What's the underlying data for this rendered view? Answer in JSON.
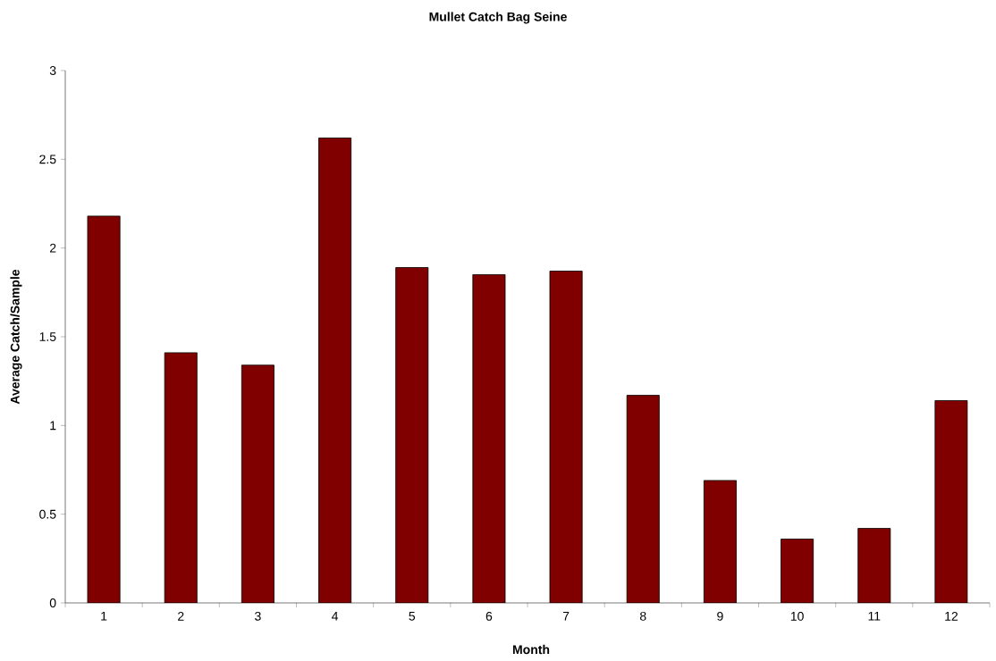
{
  "chart_data": {
    "type": "bar",
    "title": "Mullet Catch Bag Seine",
    "xlabel": "Month",
    "ylabel": "Average Catch/Sample",
    "categories": [
      "1",
      "2",
      "3",
      "4",
      "5",
      "6",
      "7",
      "8",
      "9",
      "10",
      "11",
      "12"
    ],
    "values": [
      2.18,
      1.41,
      1.34,
      2.62,
      1.89,
      1.85,
      1.87,
      1.17,
      0.69,
      0.36,
      0.42,
      1.14
    ],
    "color": "#800000",
    "ylim": [
      0,
      3
    ],
    "yticks": [
      0,
      0.5,
      1,
      1.5,
      2,
      2.5,
      3
    ]
  }
}
